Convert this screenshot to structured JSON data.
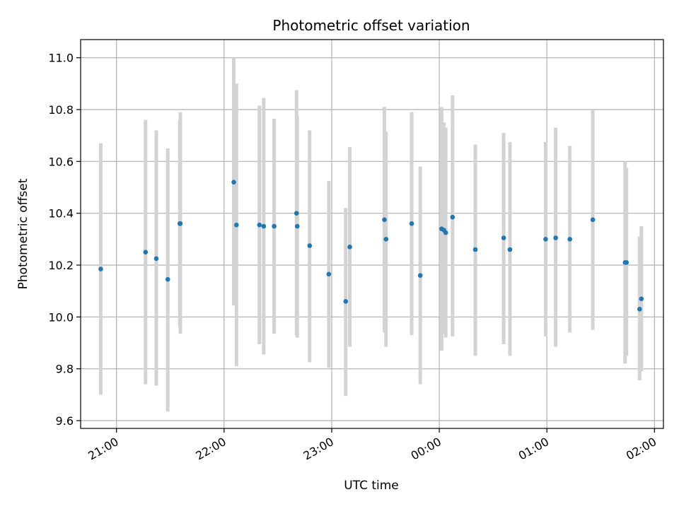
{
  "chart_data": {
    "type": "scatter",
    "title": "Photometric offset variation",
    "xlabel": "UTC time",
    "ylabel": "Photometric offset",
    "x_unit": "minutes of UTC time, continuing past midnight",
    "xlim": [
      1240,
      1565
    ],
    "ylim": [
      9.57,
      11.07
    ],
    "grid": true,
    "x_ticks": [
      {
        "value": 1260,
        "label": "21:00"
      },
      {
        "value": 1320,
        "label": "22:00"
      },
      {
        "value": 1380,
        "label": "23:00"
      },
      {
        "value": 1440,
        "label": "00:00"
      },
      {
        "value": 1500,
        "label": "01:00"
      },
      {
        "value": 1560,
        "label": "02:00"
      }
    ],
    "y_ticks": [
      {
        "value": 9.6,
        "label": "9.6"
      },
      {
        "value": 9.8,
        "label": "9.8"
      },
      {
        "value": 10.0,
        "label": "10.0"
      },
      {
        "value": 10.2,
        "label": "10.2"
      },
      {
        "value": 10.4,
        "label": "10.4"
      },
      {
        "value": 10.6,
        "label": "10.6"
      },
      {
        "value": 10.8,
        "label": "10.8"
      },
      {
        "value": 11.0,
        "label": "11.0"
      }
    ],
    "colors": {
      "point": "#1f77b4",
      "errorbar": "#d3d3d3",
      "grid": "#b0b0b0",
      "axes": "#000000"
    },
    "points": [
      {
        "x": 1251.2,
        "y": 10.185,
        "ylow": 9.7,
        "yhigh": 10.67
      },
      {
        "x": 1276.2,
        "y": 10.25,
        "ylow": 9.74,
        "yhigh": 10.76
      },
      {
        "x": 1282.2,
        "y": 10.225,
        "ylow": 9.735,
        "yhigh": 10.72
      },
      {
        "x": 1288.6,
        "y": 10.145,
        "ylow": 9.635,
        "yhigh": 10.65
      },
      {
        "x": 1295.3,
        "y": 10.36,
        "ylow": 9.96,
        "yhigh": 10.76
      },
      {
        "x": 1295.6,
        "y": 10.36,
        "ylow": 9.935,
        "yhigh": 10.79
      },
      {
        "x": 1325.4,
        "y": 10.52,
        "ylow": 10.045,
        "yhigh": 11.0
      },
      {
        "x": 1326.9,
        "y": 10.355,
        "ylow": 9.81,
        "yhigh": 10.9
      },
      {
        "x": 1339.7,
        "y": 10.355,
        "ylow": 9.895,
        "yhigh": 10.815
      },
      {
        "x": 1342.1,
        "y": 10.35,
        "ylow": 9.855,
        "yhigh": 10.845
      },
      {
        "x": 1347.9,
        "y": 10.35,
        "ylow": 9.935,
        "yhigh": 10.765
      },
      {
        "x": 1360.4,
        "y": 10.4,
        "ylow": 9.93,
        "yhigh": 10.875
      },
      {
        "x": 1360.8,
        "y": 10.35,
        "ylow": 9.92,
        "yhigh": 10.775
      },
      {
        "x": 1367.7,
        "y": 10.275,
        "ylow": 9.825,
        "yhigh": 10.72
      },
      {
        "x": 1378.4,
        "y": 10.165,
        "ylow": 9.805,
        "yhigh": 10.525
      },
      {
        "x": 1387.8,
        "y": 10.06,
        "ylow": 9.695,
        "yhigh": 10.42
      },
      {
        "x": 1390.1,
        "y": 10.27,
        "ylow": 9.885,
        "yhigh": 10.655
      },
      {
        "x": 1409.4,
        "y": 10.375,
        "ylow": 9.94,
        "yhigh": 10.81
      },
      {
        "x": 1410.3,
        "y": 10.3,
        "ylow": 9.885,
        "yhigh": 10.715
      },
      {
        "x": 1424.6,
        "y": 10.36,
        "ylow": 9.93,
        "yhigh": 10.79
      },
      {
        "x": 1429.4,
        "y": 10.16,
        "ylow": 9.74,
        "yhigh": 10.58
      },
      {
        "x": 1441.3,
        "y": 10.34,
        "ylow": 9.87,
        "yhigh": 10.81
      },
      {
        "x": 1442.6,
        "y": 10.335,
        "ylow": 9.935,
        "yhigh": 10.75
      },
      {
        "x": 1443.6,
        "y": 10.325,
        "ylow": 9.92,
        "yhigh": 10.73
      },
      {
        "x": 1447.4,
        "y": 10.385,
        "ylow": 9.925,
        "yhigh": 10.855
      },
      {
        "x": 1460.1,
        "y": 10.26,
        "ylow": 9.85,
        "yhigh": 10.665
      },
      {
        "x": 1475.9,
        "y": 10.305,
        "ylow": 9.895,
        "yhigh": 10.71
      },
      {
        "x": 1479.4,
        "y": 10.26,
        "ylow": 9.85,
        "yhigh": 10.675
      },
      {
        "x": 1499.3,
        "y": 10.3,
        "ylow": 9.925,
        "yhigh": 10.675
      },
      {
        "x": 1504.9,
        "y": 10.305,
        "ylow": 9.885,
        "yhigh": 10.73
      },
      {
        "x": 1512.8,
        "y": 10.3,
        "ylow": 9.94,
        "yhigh": 10.66
      },
      {
        "x": 1525.6,
        "y": 10.375,
        "ylow": 9.95,
        "yhigh": 10.8
      },
      {
        "x": 1543.6,
        "y": 10.21,
        "ylow": 9.82,
        "yhigh": 10.6
      },
      {
        "x": 1544.4,
        "y": 10.21,
        "ylow": 9.85,
        "yhigh": 10.575
      },
      {
        "x": 1551.7,
        "y": 10.03,
        "ylow": 9.755,
        "yhigh": 10.31
      },
      {
        "x": 1552.7,
        "y": 10.07,
        "ylow": 9.79,
        "yhigh": 10.35
      }
    ]
  }
}
